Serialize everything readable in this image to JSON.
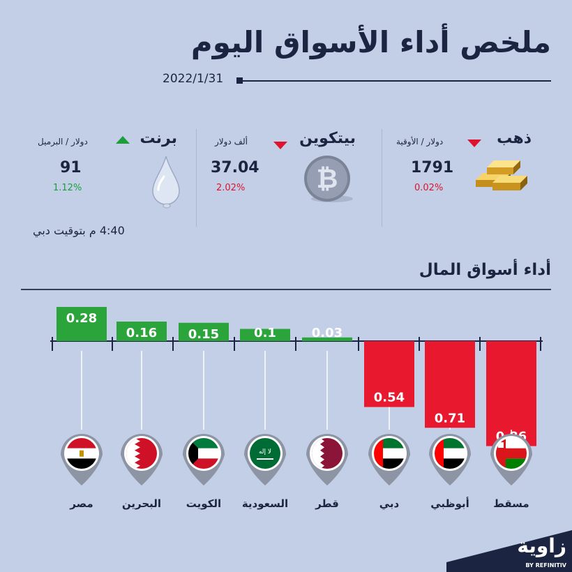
{
  "header": {
    "title": "ملخص أداء الأسواق اليوم",
    "date": "2022/1/31"
  },
  "markets": [
    {
      "key": "gold",
      "name": "ذهب",
      "unit": "دولار / الأوقية",
      "value": "1791",
      "change": "0.02%",
      "direction": "down",
      "icon": "gold-bars-icon"
    },
    {
      "key": "bitcoin",
      "name": "بيتكوين",
      "unit": "ألف دولار",
      "value": "37.04",
      "change": "2.02%",
      "direction": "down",
      "icon": "bitcoin-icon"
    },
    {
      "key": "brent",
      "name": "برنت",
      "unit": "دولار / البرميل",
      "value": "91",
      "change": "1.12%",
      "direction": "up",
      "icon": "oil-drop-icon"
    }
  ],
  "time_note": "4:40 م بتوقيت دبي",
  "section_title": "أداء أسواق المال",
  "colors": {
    "positive": "#2aa43b",
    "negative": "#e8192f",
    "navy": "#1b2440",
    "background": "#c3cfe6"
  },
  "chart_data": {
    "type": "bar",
    "title": "أداء أسواق المال",
    "categories": [
      "مصر",
      "البحرين",
      "الكويت",
      "السعودية",
      "قطر",
      "دبي",
      "أبوظبي",
      "مسقط"
    ],
    "values": [
      0.28,
      0.16,
      0.15,
      0.1,
      0.03,
      -0.54,
      -0.71,
      -0.86
    ],
    "labels": [
      "0.28",
      "0.16",
      "0.15",
      "0.1",
      "0.03",
      "0.54",
      "0.71",
      "0.86"
    ],
    "flags": [
      "egypt-flag-icon",
      "bahrain-flag-icon",
      "kuwait-flag-icon",
      "saudi-flag-icon",
      "qatar-flag-icon",
      "uae-flag-icon",
      "uae-flag-icon",
      "oman-flag-icon"
    ]
  },
  "logo": {
    "name": "زاوية",
    "sub": "BY REFINITIV"
  }
}
